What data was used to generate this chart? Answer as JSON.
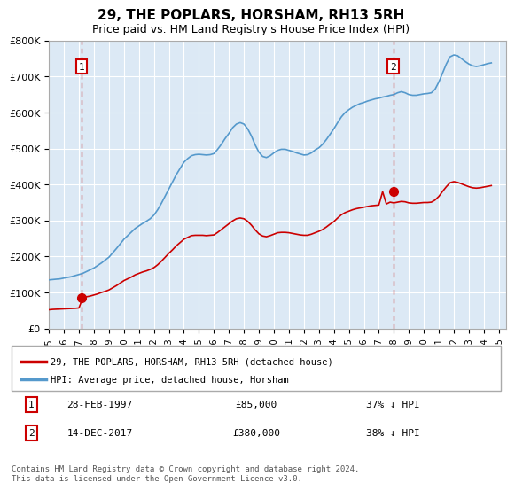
{
  "title": "29, THE POPLARS, HORSHAM, RH13 5RH",
  "subtitle": "Price paid vs. HM Land Registry's House Price Index (HPI)",
  "ylabel": "",
  "background_color": "#dce9f5",
  "plot_bg_color": "#dce9f5",
  "ylim": [
    0,
    800000
  ],
  "yticks": [
    0,
    100000,
    200000,
    300000,
    400000,
    500000,
    600000,
    700000,
    800000
  ],
  "ytick_labels": [
    "£0",
    "£100K",
    "£200K",
    "£300K",
    "£400K",
    "£500K",
    "£600K",
    "£700K",
    "£800K"
  ],
  "xlim_start": 1995.0,
  "xlim_end": 2025.5,
  "transaction1_year": 1997.167,
  "transaction1_price": 85000,
  "transaction1_label": "1",
  "transaction1_date": "28-FEB-1997",
  "transaction1_hpi_text": "37% ↓ HPI",
  "transaction2_year": 2017.958,
  "transaction2_price": 380000,
  "transaction2_label": "2",
  "transaction2_date": "14-DEC-2017",
  "transaction2_hpi_text": "38% ↓ HPI",
  "red_line_color": "#cc0000",
  "blue_line_color": "#5599cc",
  "dashed_line_color": "#cc4444",
  "legend_label_red": "29, THE POPLARS, HORSHAM, RH13 5RH (detached house)",
  "legend_label_blue": "HPI: Average price, detached house, Horsham",
  "footer_text": "Contains HM Land Registry data © Crown copyright and database right 2024.\nThis data is licensed under the Open Government Licence v3.0.",
  "hpi_x": [
    1995.0,
    1995.25,
    1995.5,
    1995.75,
    1996.0,
    1996.25,
    1996.5,
    1996.75,
    1997.0,
    1997.25,
    1997.5,
    1997.75,
    1998.0,
    1998.25,
    1998.5,
    1998.75,
    1999.0,
    1999.25,
    1999.5,
    1999.75,
    2000.0,
    2000.25,
    2000.5,
    2000.75,
    2001.0,
    2001.25,
    2001.5,
    2001.75,
    2002.0,
    2002.25,
    2002.5,
    2002.75,
    2003.0,
    2003.25,
    2003.5,
    2003.75,
    2004.0,
    2004.25,
    2004.5,
    2004.75,
    2005.0,
    2005.25,
    2005.5,
    2005.75,
    2006.0,
    2006.25,
    2006.5,
    2006.75,
    2007.0,
    2007.25,
    2007.5,
    2007.75,
    2008.0,
    2008.25,
    2008.5,
    2008.75,
    2009.0,
    2009.25,
    2009.5,
    2009.75,
    2010.0,
    2010.25,
    2010.5,
    2010.75,
    2011.0,
    2011.25,
    2011.5,
    2011.75,
    2012.0,
    2012.25,
    2012.5,
    2012.75,
    2013.0,
    2013.25,
    2013.5,
    2013.75,
    2014.0,
    2014.25,
    2014.5,
    2014.75,
    2015.0,
    2015.25,
    2015.5,
    2015.75,
    2016.0,
    2016.25,
    2016.5,
    2016.75,
    2017.0,
    2017.25,
    2017.5,
    2017.75,
    2018.0,
    2018.25,
    2018.5,
    2018.75,
    2019.0,
    2019.25,
    2019.5,
    2019.75,
    2020.0,
    2020.25,
    2020.5,
    2020.75,
    2021.0,
    2021.25,
    2021.5,
    2021.75,
    2022.0,
    2022.25,
    2022.5,
    2022.75,
    2023.0,
    2023.25,
    2023.5,
    2023.75,
    2024.0,
    2024.25,
    2024.5
  ],
  "hpi_y": [
    135000,
    136000,
    137000,
    138000,
    140000,
    142000,
    144000,
    147000,
    150000,
    153000,
    158000,
    163000,
    168000,
    175000,
    182000,
    190000,
    198000,
    210000,
    222000,
    235000,
    248000,
    258000,
    268000,
    278000,
    285000,
    292000,
    298000,
    305000,
    315000,
    330000,
    348000,
    368000,
    388000,
    408000,
    428000,
    445000,
    462000,
    472000,
    480000,
    483000,
    484000,
    483000,
    482000,
    483000,
    486000,
    498000,
    512000,
    528000,
    542000,
    558000,
    568000,
    572000,
    568000,
    555000,
    535000,
    510000,
    490000,
    478000,
    475000,
    480000,
    488000,
    495000,
    498000,
    498000,
    495000,
    492000,
    488000,
    485000,
    482000,
    483000,
    488000,
    496000,
    502000,
    512000,
    525000,
    540000,
    555000,
    572000,
    588000,
    600000,
    608000,
    615000,
    620000,
    625000,
    628000,
    632000,
    635000,
    638000,
    640000,
    643000,
    645000,
    648000,
    650000,
    655000,
    658000,
    655000,
    650000,
    648000,
    648000,
    650000,
    652000,
    653000,
    655000,
    665000,
    685000,
    710000,
    735000,
    755000,
    760000,
    758000,
    750000,
    742000,
    735000,
    730000,
    728000,
    730000,
    733000,
    736000,
    738000
  ],
  "red_x": [
    1995.0,
    1995.25,
    1995.5,
    1995.75,
    1996.0,
    1996.25,
    1996.5,
    1996.75,
    1997.0,
    1997.25,
    1997.5,
    1997.75,
    1998.0,
    1998.25,
    1998.5,
    1998.75,
    1999.0,
    1999.25,
    1999.5,
    1999.75,
    2000.0,
    2000.25,
    2000.5,
    2000.75,
    2001.0,
    2001.25,
    2001.5,
    2001.75,
    2002.0,
    2002.25,
    2002.5,
    2002.75,
    2003.0,
    2003.25,
    2003.5,
    2003.75,
    2004.0,
    2004.25,
    2004.5,
    2004.75,
    2005.0,
    2005.25,
    2005.5,
    2005.75,
    2006.0,
    2006.25,
    2006.5,
    2006.75,
    2007.0,
    2007.25,
    2007.5,
    2007.75,
    2008.0,
    2008.25,
    2008.5,
    2008.75,
    2009.0,
    2009.25,
    2009.5,
    2009.75,
    2010.0,
    2010.25,
    2010.5,
    2010.75,
    2011.0,
    2011.25,
    2011.5,
    2011.75,
    2012.0,
    2012.25,
    2012.5,
    2012.75,
    2013.0,
    2013.25,
    2013.5,
    2013.75,
    2014.0,
    2014.25,
    2014.5,
    2014.75,
    2015.0,
    2015.25,
    2015.5,
    2015.75,
    2016.0,
    2016.25,
    2016.5,
    2016.75,
    2017.0,
    2017.25,
    2017.5,
    2017.75,
    2018.0,
    2018.25,
    2018.5,
    2018.75,
    2019.0,
    2019.25,
    2019.5,
    2019.75,
    2020.0,
    2020.25,
    2020.5,
    2020.75,
    2021.0,
    2021.25,
    2021.5,
    2021.75,
    2022.0,
    2022.25,
    2022.5,
    2022.75,
    2023.0,
    2023.25,
    2023.5,
    2023.75,
    2024.0,
    2024.25,
    2024.5
  ],
  "red_y": [
    52000,
    53000,
    53500,
    54000,
    54500,
    55000,
    55500,
    56000,
    57000,
    85000,
    88000,
    90000,
    93000,
    96000,
    100000,
    103000,
    107000,
    113000,
    119000,
    126000,
    133000,
    138000,
    143000,
    149000,
    153000,
    157000,
    160000,
    164000,
    169000,
    177000,
    187000,
    198000,
    209000,
    219000,
    230000,
    239000,
    248000,
    253000,
    258000,
    259000,
    259000,
    259000,
    258000,
    259000,
    260000,
    267000,
    275000,
    283000,
    291000,
    299000,
    305000,
    307000,
    305000,
    298000,
    287000,
    274000,
    263000,
    257000,
    255000,
    258000,
    262000,
    266000,
    267000,
    267000,
    266000,
    264000,
    262000,
    260000,
    259000,
    259000,
    262000,
    266000,
    270000,
    275000,
    282000,
    290000,
    297000,
    307000,
    316000,
    322000,
    326000,
    330000,
    333000,
    335000,
    337000,
    339000,
    341000,
    342000,
    343000,
    380000,
    346000,
    351000,
    349000,
    351000,
    353000,
    352000,
    349000,
    348000,
    348000,
    349000,
    350000,
    350000,
    351000,
    357000,
    367000,
    381000,
    394000,
    405000,
    408000,
    406000,
    402000,
    398000,
    394000,
    391000,
    390000,
    391000,
    393000,
    395000,
    397000
  ]
}
